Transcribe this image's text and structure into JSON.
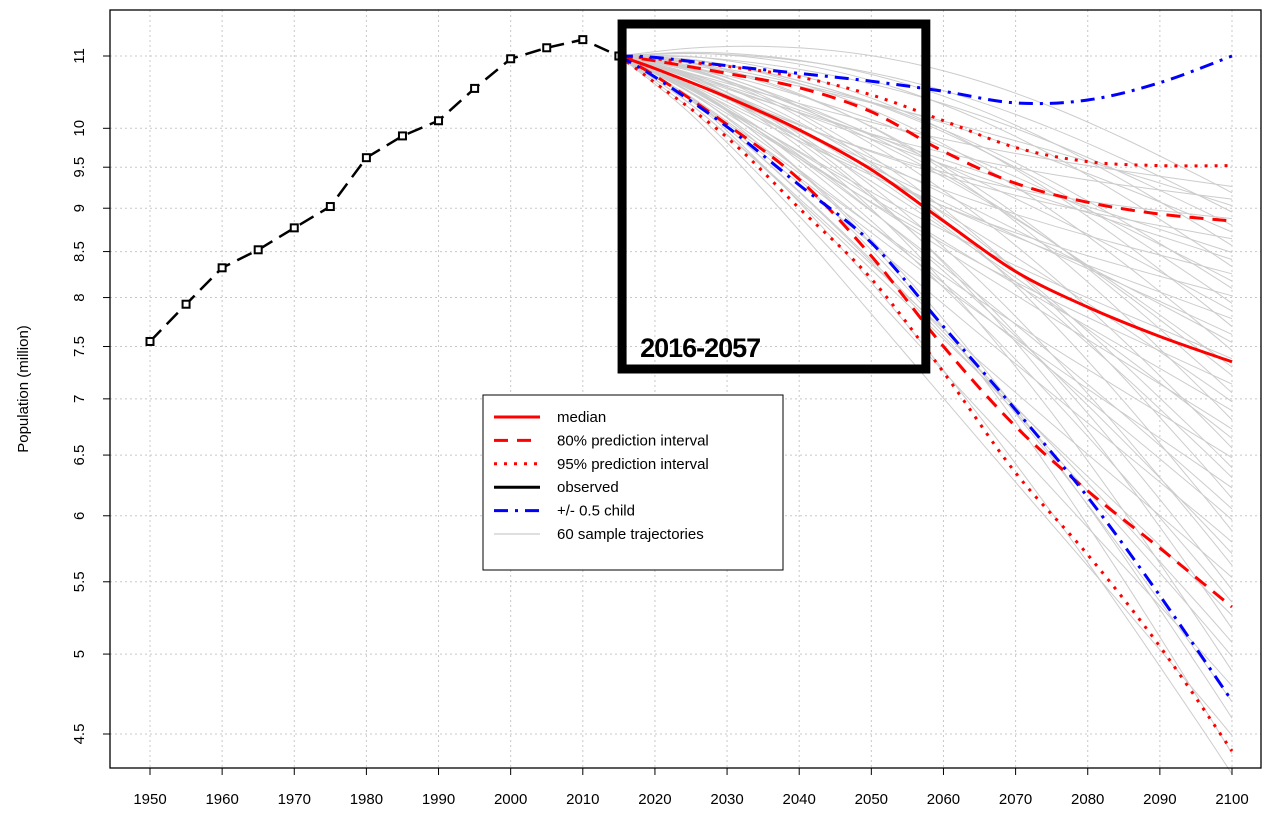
{
  "chart_data": {
    "type": "line",
    "title": "",
    "xlabel": "",
    "ylabel": "Population (million)",
    "y_scale": "log",
    "xlim": [
      1945,
      2105
    ],
    "ylim": [
      4.3,
      11.5
    ],
    "x_ticks": [
      1950,
      1960,
      1970,
      1980,
      1990,
      2000,
      2010,
      2020,
      2030,
      2040,
      2050,
      2060,
      2070,
      2080,
      2090,
      2100
    ],
    "y_ticks": [
      4.5,
      5,
      5.5,
      6,
      6.5,
      7,
      7.5,
      8,
      8.5,
      9,
      9.5,
      10,
      11
    ],
    "y_tick_labels": [
      "4.5",
      "5",
      "5.5",
      "6",
      "6.5",
      "7",
      "7.5",
      "8",
      "8.5",
      "9",
      "9.5",
      "10",
      "11"
    ],
    "grid": true,
    "legend_position": "center",
    "series": [
      {
        "name": "observed",
        "color": "#000000",
        "style": "longdash-with-points",
        "x": [
          1950,
          1955,
          1960,
          1965,
          1970,
          1975,
          1980,
          1985,
          1990,
          1995,
          2000,
          2005,
          2010,
          2015
        ],
        "y": [
          7.55,
          7.93,
          8.32,
          8.52,
          8.77,
          9.02,
          9.62,
          9.9,
          10.1,
          10.54,
          10.96,
          11.12,
          11.24,
          11.0
        ]
      },
      {
        "name": "median",
        "color": "#ff0000",
        "style": "solid",
        "x": [
          2015,
          2020,
          2030,
          2040,
          2050,
          2060,
          2070,
          2080,
          2090,
          2100
        ],
        "y": [
          11.0,
          10.82,
          10.42,
          9.98,
          9.47,
          8.85,
          8.28,
          7.9,
          7.6,
          7.35
        ]
      },
      {
        "name": "80% prediction interval",
        "color": "#ff0000",
        "style": "dashed",
        "bounds": [
          {
            "x": [
              2015,
              2020,
              2030,
              2040,
              2050,
              2060,
              2070,
              2080,
              2090,
              2100
            ],
            "y": [
              11.0,
              10.93,
              10.75,
              10.55,
              10.22,
              9.7,
              9.3,
              9.07,
              8.93,
              8.85
            ]
          },
          {
            "x": [
              2015,
              2020,
              2030,
              2040,
              2050,
              2060,
              2070,
              2080,
              2090,
              2100
            ],
            "y": [
              11.0,
              10.72,
              10.05,
              9.35,
              8.45,
              7.5,
              6.75,
              6.2,
              5.75,
              5.32
            ]
          }
        ]
      },
      {
        "name": "95% prediction interval",
        "color": "#ff0000",
        "style": "dotted",
        "bounds": [
          {
            "x": [
              2015,
              2020,
              2030,
              2040,
              2050,
              2060,
              2070,
              2080,
              2090,
              2100
            ],
            "y": [
              11.0,
              10.96,
              10.85,
              10.7,
              10.45,
              10.1,
              9.75,
              9.57,
              9.52,
              9.52
            ]
          },
          {
            "x": [
              2015,
              2020,
              2030,
              2040,
              2050,
              2060,
              2070,
              2080,
              2090,
              2100
            ],
            "y": [
              11.0,
              10.62,
              9.88,
              9.0,
              8.2,
              7.25,
              6.35,
              5.7,
              5.05,
              4.4
            ]
          }
        ]
      },
      {
        "name": "+/- 0.5 child",
        "color": "#0000ff",
        "style": "dotdash",
        "bounds": [
          {
            "x": [
              2015,
              2020,
              2030,
              2040,
              2050,
              2060,
              2070,
              2080,
              2090,
              2100
            ],
            "y": [
              11.0,
              10.98,
              10.86,
              10.75,
              10.64,
              10.5,
              10.34,
              10.38,
              10.62,
              11.0
            ]
          },
          {
            "x": [
              2015,
              2020,
              2030,
              2040,
              2050,
              2060,
              2070,
              2080,
              2090,
              2100
            ],
            "y": [
              11.0,
              10.7,
              10.02,
              9.28,
              8.6,
              7.7,
              6.9,
              6.15,
              5.4,
              4.7
            ]
          }
        ]
      },
      {
        "name": "60 sample trajectories",
        "color": "#cccccc",
        "style": "solid-thin",
        "x": [
          2015,
          2100
        ],
        "endpoints_range": [
          4.2,
          9.3
        ],
        "count": 60
      }
    ],
    "legend": [
      "median",
      "80% prediction interval",
      "95% prediction interval",
      "observed",
      "+/- 0.5 child",
      "60 sample trajectories"
    ],
    "annotation": {
      "label": "2016-2057",
      "x_range": [
        2016,
        2057
      ]
    }
  }
}
